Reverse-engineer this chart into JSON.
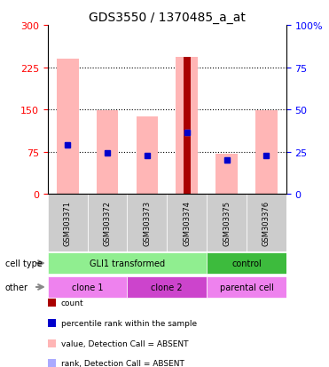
{
  "title": "GDS3550 / 1370485_a_at",
  "samples": [
    "GSM303371",
    "GSM303372",
    "GSM303373",
    "GSM303374",
    "GSM303375",
    "GSM303376"
  ],
  "count_values": [
    0,
    0,
    0,
    243,
    0,
    0
  ],
  "pink_bar_top": [
    240,
    148,
    138,
    243,
    72,
    148
  ],
  "blue_marker_y": [
    88,
    73,
    68,
    110,
    60,
    68
  ],
  "light_blue_marker_y": [
    88,
    0,
    0,
    110,
    60,
    0
  ],
  "ylim_left": [
    0,
    300
  ],
  "ylim_right": [
    0,
    100
  ],
  "left_ticks": [
    0,
    75,
    150,
    225,
    300
  ],
  "right_ticks": [
    0,
    25,
    50,
    75,
    100
  ],
  "right_tick_labels": [
    "0",
    "25",
    "50",
    "75",
    "100%"
  ],
  "cell_type_groups": [
    {
      "label": "GLI1 transformed",
      "start": 0,
      "end": 3,
      "color": "#90ee90"
    },
    {
      "label": "control",
      "start": 4,
      "end": 5,
      "color": "#3dbb3d"
    }
  ],
  "other_groups": [
    {
      "label": "clone 1",
      "start": 0,
      "end": 1,
      "color": "#ee82ee"
    },
    {
      "label": "clone 2",
      "start": 2,
      "end": 3,
      "color": "#cc44cc"
    },
    {
      "label": "parental cell",
      "start": 4,
      "end": 5,
      "color": "#ee82ee"
    }
  ],
  "sample_bg_color": "#cccccc",
  "pink_color": "#ffb6b6",
  "dark_red_color": "#aa0000",
  "blue_color": "#0000cc",
  "light_blue_color": "#aaaaff",
  "legend_items": [
    {
      "color": "#aa0000",
      "label": "count"
    },
    {
      "color": "#0000cc",
      "label": "percentile rank within the sample"
    },
    {
      "color": "#ffb6b6",
      "label": "value, Detection Call = ABSENT"
    },
    {
      "color": "#aaaaff",
      "label": "rank, Detection Call = ABSENT"
    }
  ]
}
